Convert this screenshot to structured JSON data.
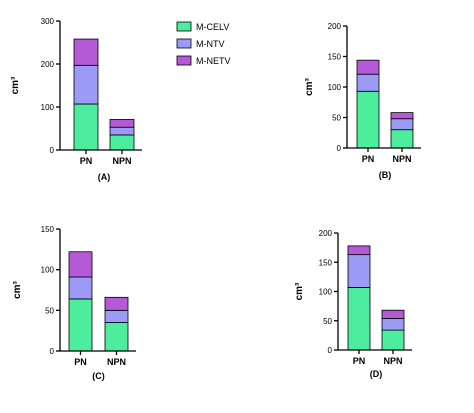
{
  "colors": {
    "M-CELV": "#4ded9e",
    "M-NTV": "#9b9bf5",
    "M-NETV": "#b45ad6"
  },
  "legend": {
    "placement": "top-center",
    "entries": [
      "M-CELV",
      "M-NTV",
      "M-NETV"
    ]
  },
  "chart_data": [
    {
      "panel_label": "(A)",
      "type": "bar",
      "stacked": true,
      "categories": [
        "PN",
        "NPN"
      ],
      "series": [
        {
          "name": "M-CELV",
          "values": [
            107,
            35
          ]
        },
        {
          "name": "M-NTV",
          "values": [
            90,
            18
          ]
        },
        {
          "name": "M-NETV",
          "values": [
            61,
            18
          ]
        }
      ],
      "ylabel": "cm³",
      "ylim": [
        0,
        300
      ],
      "yticks": [
        0,
        100,
        200,
        300
      ],
      "grid": false
    },
    {
      "panel_label": "(B)",
      "type": "bar",
      "stacked": true,
      "categories": [
        "PN",
        "NPN"
      ],
      "series": [
        {
          "name": "M-CELV",
          "values": [
            93,
            30
          ]
        },
        {
          "name": "M-NTV",
          "values": [
            28,
            18
          ]
        },
        {
          "name": "M-NETV",
          "values": [
            23,
            10
          ]
        }
      ],
      "ylabel": "cm³",
      "ylim": [
        0,
        200
      ],
      "yticks": [
        0,
        50,
        100,
        150,
        200
      ],
      "grid": false
    },
    {
      "panel_label": "(C)",
      "type": "bar",
      "stacked": true,
      "categories": [
        "PN",
        "NPN"
      ],
      "series": [
        {
          "name": "M-CELV",
          "values": [
            64,
            35
          ]
        },
        {
          "name": "M-NTV",
          "values": [
            27,
            15
          ]
        },
        {
          "name": "M-NETV",
          "values": [
            31,
            16
          ]
        }
      ],
      "ylabel": "cm³",
      "ylim": [
        0,
        150
      ],
      "yticks": [
        0,
        50,
        100,
        150
      ],
      "grid": false
    },
    {
      "panel_label": "(D)",
      "type": "bar",
      "stacked": true,
      "categories": [
        "PN",
        "NPN"
      ],
      "series": [
        {
          "name": "M-CELV",
          "values": [
            107,
            34
          ]
        },
        {
          "name": "M-NTV",
          "values": [
            56,
            20
          ]
        },
        {
          "name": "M-NETV",
          "values": [
            15,
            14
          ]
        }
      ],
      "ylabel": "cm³",
      "ylim": [
        0,
        200
      ],
      "yticks": [
        0,
        50,
        100,
        150,
        200
      ],
      "grid": false
    }
  ]
}
